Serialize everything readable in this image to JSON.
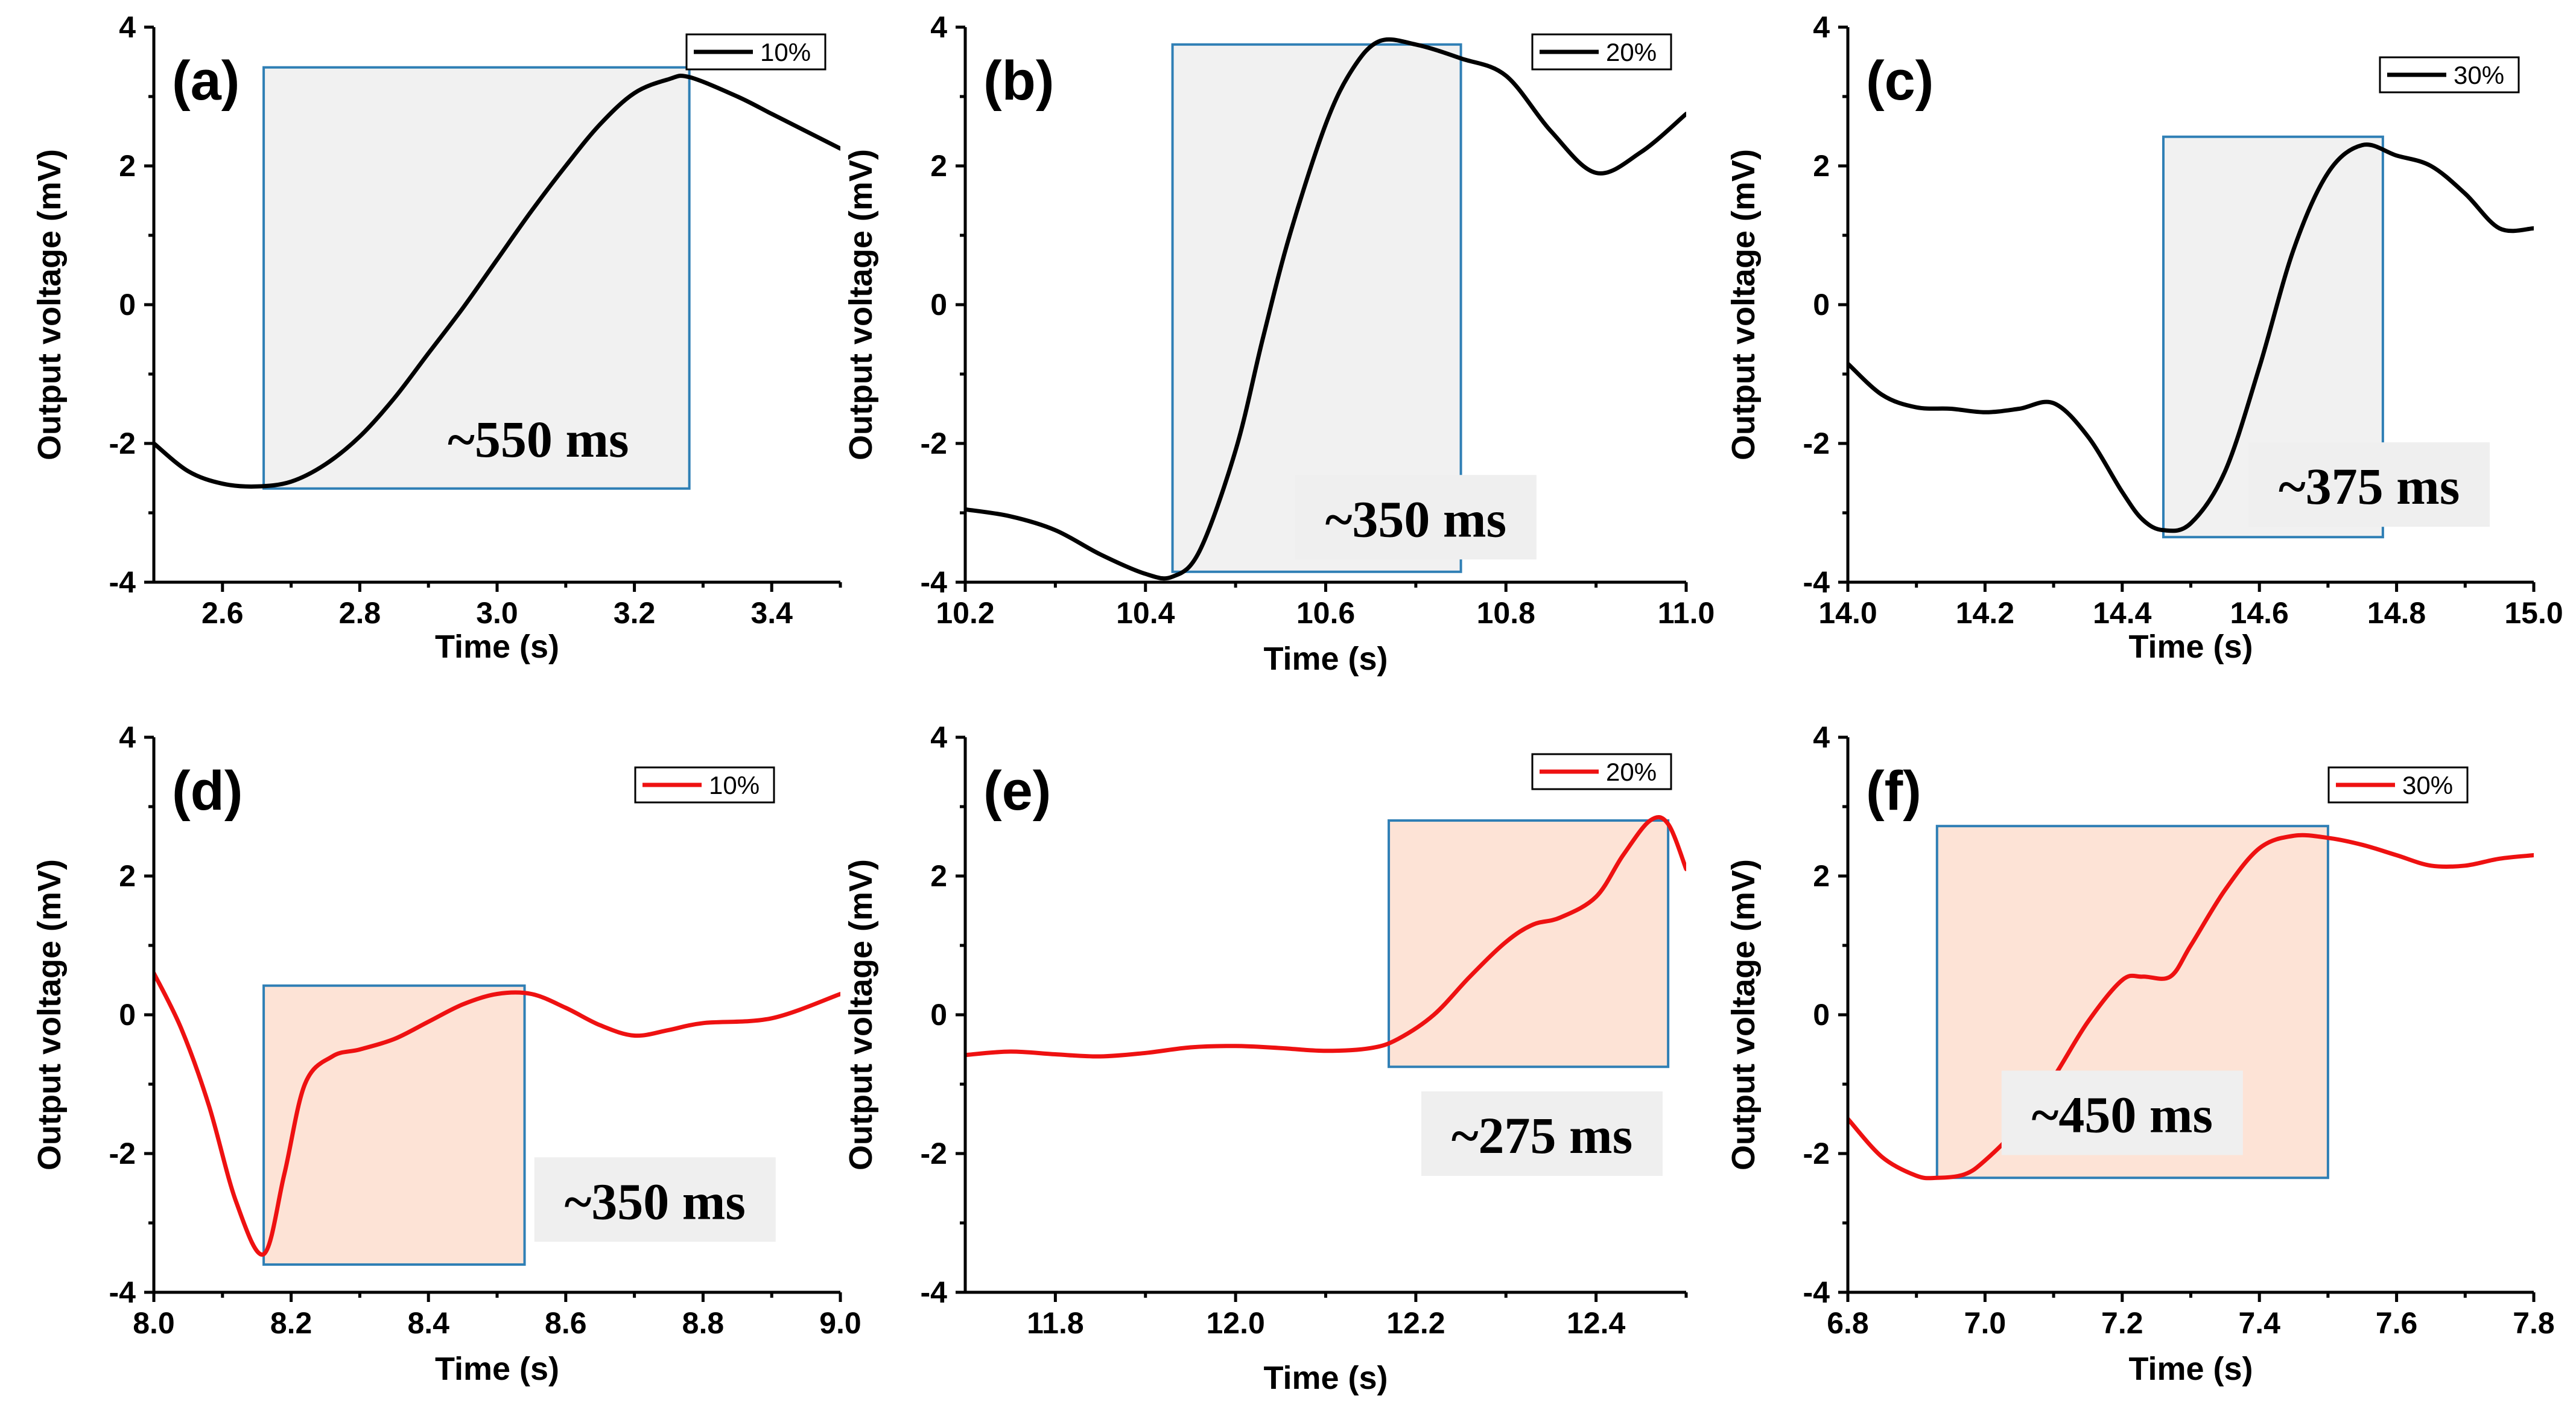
{
  "chart_data": [
    {
      "id": "a",
      "type": "line",
      "panel_label": "(a)",
      "xlabel": "Time (s)",
      "ylabel": "Output voltage (mV)",
      "xlim": [
        2.5,
        3.5
      ],
      "ylim": [
        -4,
        4
      ],
      "xticks": [
        2.6,
        2.8,
        3.0,
        3.2,
        3.4
      ],
      "xtick_labels": [
        "2.6",
        "2.8",
        "3.0",
        "3.2",
        "3.4"
      ],
      "yticks": [
        -4,
        -2,
        0,
        2,
        4
      ],
      "ytick_labels": [
        "-4",
        "-2",
        "0",
        "2",
        "4"
      ],
      "series": [
        {
          "name": "10%",
          "color": "#000000",
          "x": [
            2.5,
            2.55,
            2.6,
            2.65,
            2.7,
            2.75,
            2.8,
            2.85,
            2.9,
            2.95,
            3.0,
            3.05,
            3.1,
            3.15,
            3.2,
            3.25,
            3.28,
            3.35,
            3.4,
            3.45,
            3.5
          ],
          "y": [
            -2.0,
            -2.4,
            -2.58,
            -2.62,
            -2.55,
            -2.3,
            -1.9,
            -1.35,
            -0.7,
            -0.05,
            0.65,
            1.35,
            2.0,
            2.6,
            3.05,
            3.25,
            3.28,
            3.0,
            2.75,
            2.5,
            2.25
          ]
        }
      ],
      "legend": {
        "label": "10%",
        "position": "top-right"
      },
      "highlight": {
        "x0": 2.66,
        "x1": 3.28,
        "y0": -2.65,
        "y1": 3.42,
        "fill": "#f1f1f1"
      },
      "annotation": {
        "text": "~550 ms",
        "x": 3.06,
        "y": -2.0,
        "box": false
      }
    },
    {
      "id": "b",
      "type": "line",
      "panel_label": "(b)",
      "xlabel": "Time (s)",
      "ylabel": "Output voltage (mV)",
      "xlim": [
        10.2,
        11.0
      ],
      "ylim": [
        -4,
        4
      ],
      "xticks": [
        10.2,
        10.4,
        10.6,
        10.8,
        11.0
      ],
      "xtick_labels": [
        "10.2",
        "10.4",
        "10.6",
        "10.8",
        "11.0"
      ],
      "yticks": [
        -4,
        -2,
        0,
        2,
        4
      ],
      "ytick_labels": [
        "-4",
        "-2",
        "0",
        "2",
        "4"
      ],
      "series": [
        {
          "name": "20%",
          "color": "#000000",
          "x": [
            10.2,
            10.25,
            10.3,
            10.35,
            10.4,
            10.43,
            10.46,
            10.5,
            10.53,
            10.56,
            10.6,
            10.63,
            10.66,
            10.7,
            10.75,
            10.8,
            10.85,
            10.9,
            10.95,
            11.0
          ],
          "y": [
            -2.95,
            -3.05,
            -3.25,
            -3.6,
            -3.88,
            -3.92,
            -3.55,
            -2.1,
            -0.5,
            1.0,
            2.6,
            3.4,
            3.8,
            3.75,
            3.55,
            3.3,
            2.5,
            1.9,
            2.2,
            2.75
          ]
        }
      ],
      "legend": {
        "label": "20%",
        "position": "top-right"
      },
      "highlight": {
        "x0": 10.43,
        "x1": 10.75,
        "y0": -3.85,
        "y1": 3.75,
        "fill": "#f1f1f1"
      },
      "annotation": {
        "text": "~350 ms",
        "x": 10.7,
        "y": -3.15,
        "box": true
      }
    },
    {
      "id": "c",
      "type": "line",
      "panel_label": "(c)",
      "xlabel": "Time (s)",
      "ylabel": "Output voltage (mV)",
      "xlim": [
        14.0,
        15.0
      ],
      "ylim": [
        -4,
        4
      ],
      "xticks": [
        14.0,
        14.2,
        14.4,
        14.6,
        14.8,
        15.0
      ],
      "xtick_labels": [
        "14.0",
        "14.2",
        "14.4",
        "14.6",
        "14.8",
        "15.0"
      ],
      "yticks": [
        -4,
        -2,
        0,
        2,
        4
      ],
      "ytick_labels": [
        "-4",
        "-2",
        "0",
        "2",
        "4"
      ],
      "series": [
        {
          "name": "30%",
          "color": "#000000",
          "x": [
            14.0,
            14.05,
            14.1,
            14.15,
            14.2,
            14.25,
            14.3,
            14.35,
            14.4,
            14.43,
            14.46,
            14.5,
            14.55,
            14.6,
            14.65,
            14.7,
            14.75,
            14.8,
            14.85,
            14.9,
            14.95,
            15.0
          ],
          "y": [
            -0.85,
            -1.3,
            -1.48,
            -1.5,
            -1.55,
            -1.5,
            -1.42,
            -1.9,
            -2.7,
            -3.1,
            -3.25,
            -3.15,
            -2.4,
            -0.9,
            0.8,
            1.9,
            2.3,
            2.15,
            2.0,
            1.6,
            1.1,
            1.1
          ]
        }
      ],
      "legend": {
        "label": "30%",
        "position": "top-right"
      },
      "highlight": {
        "x0": 14.46,
        "x1": 14.78,
        "y0": -3.35,
        "y1": 2.42,
        "fill": "#f1f1f1"
      },
      "annotation": {
        "text": "~375 ms",
        "x": 14.76,
        "y": -2.68,
        "box": true
      }
    },
    {
      "id": "d",
      "type": "line",
      "panel_label": "(d)",
      "xlabel": "Time (s)",
      "ylabel": "Output voltage (mV)",
      "xlim": [
        8.0,
        9.0
      ],
      "ylim": [
        -4,
        4
      ],
      "xticks": [
        8.0,
        8.2,
        8.4,
        8.6,
        8.8,
        9.0
      ],
      "xtick_labels": [
        "8.0",
        "8.2",
        "8.4",
        "8.6",
        "8.8",
        "9.0"
      ],
      "yticks": [
        -4,
        -2,
        0,
        2,
        4
      ],
      "ytick_labels": [
        "-4",
        "-2",
        "0",
        "2",
        "4"
      ],
      "series": [
        {
          "name": "10%",
          "color": "#ee1111",
          "x": [
            8.0,
            8.04,
            8.08,
            8.12,
            8.16,
            8.19,
            8.22,
            8.26,
            8.3,
            8.35,
            8.4,
            8.45,
            8.5,
            8.55,
            8.6,
            8.65,
            8.7,
            8.75,
            8.8,
            8.9,
            9.0
          ],
          "y": [
            0.6,
            -0.2,
            -1.3,
            -2.7,
            -3.45,
            -2.3,
            -1.0,
            -0.6,
            -0.5,
            -0.35,
            -0.1,
            0.15,
            0.3,
            0.3,
            0.1,
            -0.15,
            -0.3,
            -0.22,
            -0.12,
            -0.05,
            0.3
          ]
        }
      ],
      "legend": {
        "label": "10%",
        "position": "top-right"
      },
      "highlight": {
        "x0": 8.16,
        "x1": 8.54,
        "y0": -3.6,
        "y1": 0.42,
        "fill": "#fde3d6"
      },
      "annotation": {
        "text": "~350 ms",
        "x": 8.73,
        "y": -2.75,
        "box": true
      }
    },
    {
      "id": "e",
      "type": "line",
      "panel_label": "(e)",
      "xlabel": "Time (s)",
      "ylabel": "Output voltage (mV)",
      "xlim": [
        11.7,
        12.5
      ],
      "ylim": [
        -4,
        4
      ],
      "xticks": [
        11.8,
        12.0,
        12.2,
        12.4
      ],
      "xtick_labels": [
        "11.8",
        "12.0",
        "12.2",
        "12.4"
      ],
      "yticks": [
        -4,
        -2,
        0,
        2,
        4
      ],
      "ytick_labels": [
        "-4",
        "-2",
        "0",
        "2",
        "4"
      ],
      "series": [
        {
          "name": "20%",
          "color": "#ee1111",
          "x": [
            11.7,
            11.75,
            11.8,
            11.85,
            11.9,
            11.95,
            12.0,
            12.05,
            12.1,
            12.15,
            12.18,
            12.22,
            12.26,
            12.3,
            12.33,
            12.36,
            12.4,
            12.43,
            12.46,
            12.48,
            12.5
          ],
          "y": [
            -0.58,
            -0.53,
            -0.57,
            -0.6,
            -0.55,
            -0.47,
            -0.45,
            -0.48,
            -0.52,
            -0.48,
            -0.35,
            0.0,
            0.55,
            1.05,
            1.3,
            1.4,
            1.7,
            2.3,
            2.8,
            2.75,
            2.1
          ]
        }
      ],
      "legend": {
        "label": "20%",
        "position": "top-right"
      },
      "highlight": {
        "x0": 12.17,
        "x1": 12.48,
        "y0": -0.75,
        "y1": 2.8,
        "fill": "#fde3d6"
      },
      "annotation": {
        "text": "~275 ms",
        "x": 12.34,
        "y": -1.8,
        "box": true
      }
    },
    {
      "id": "f",
      "type": "line",
      "panel_label": "(f)",
      "xlabel": "Time (s)",
      "ylabel": "Output voltage (mV)",
      "xlim": [
        6.8,
        7.8
      ],
      "ylim": [
        -4,
        4
      ],
      "xticks": [
        6.8,
        7.0,
        7.2,
        7.4,
        7.6,
        7.8
      ],
      "xtick_labels": [
        "6.8",
        "7.0",
        "7.2",
        "7.4",
        "7.6",
        "7.8"
      ],
      "yticks": [
        -4,
        -2,
        0,
        2,
        4
      ],
      "ytick_labels": [
        "-4",
        "-2",
        "0",
        "2",
        "4"
      ],
      "series": [
        {
          "name": "30%",
          "color": "#ee1111",
          "x": [
            6.8,
            6.85,
            6.9,
            6.93,
            6.97,
            7.0,
            7.05,
            7.1,
            7.15,
            7.2,
            7.23,
            7.27,
            7.3,
            7.35,
            7.4,
            7.45,
            7.5,
            7.55,
            7.6,
            7.65,
            7.7,
            7.75,
            7.8
          ],
          "y": [
            -1.5,
            -2.05,
            -2.32,
            -2.35,
            -2.3,
            -2.1,
            -1.6,
            -0.9,
            -0.1,
            0.5,
            0.55,
            0.55,
            1.0,
            1.8,
            2.4,
            2.58,
            2.55,
            2.45,
            2.3,
            2.15,
            2.15,
            2.25,
            2.3
          ]
        }
      ],
      "legend": {
        "label": "30%",
        "position": "top-right"
      },
      "highlight": {
        "x0": 6.93,
        "x1": 7.5,
        "y0": -2.35,
        "y1": 2.72,
        "fill": "#fde3d6"
      },
      "annotation": {
        "text": "~450 ms",
        "x": 7.2,
        "y": -1.5,
        "box": true
      }
    }
  ]
}
